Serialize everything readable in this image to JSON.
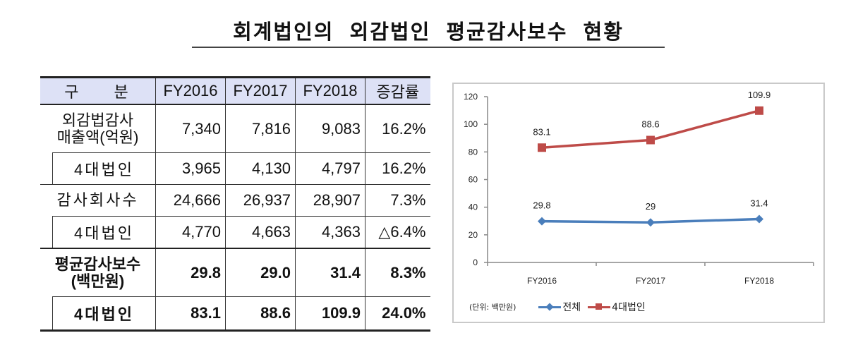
{
  "title": "회계법인의 외감법인 평균감사보수 현황",
  "table": {
    "headers": [
      "구 분",
      "FY2016",
      "FY2017",
      "FY2018",
      "증감률"
    ],
    "rows": [
      {
        "label": "외감법감사",
        "label2": "매출액(억원)",
        "values": [
          "7,340",
          "7,816",
          "9,083",
          "16.2%"
        ]
      },
      {
        "label": "4대법인",
        "sub": true,
        "values": [
          "3,965",
          "4,130",
          "4,797",
          "16.2%"
        ]
      },
      {
        "label": "감사회사수",
        "values": [
          "24,666",
          "26,937",
          "28,907",
          "7.3%"
        ]
      },
      {
        "label": "4대법인",
        "sub": true,
        "values": [
          "4,770",
          "4,663",
          "4,363",
          "△6.4%"
        ]
      },
      {
        "label": "평균감사보수",
        "label2": "(백만원)",
        "bold": true,
        "values": [
          "29.8",
          "29.0",
          "31.4",
          "8.3%"
        ]
      },
      {
        "label": "4대법인",
        "sub": true,
        "bold": true,
        "values": [
          "83.1",
          "88.6",
          "109.9",
          "24.0%"
        ]
      }
    ]
  },
  "chart": {
    "unit_note": "(단위: 백만원)",
    "legend": [
      "전체",
      "4대법인"
    ]
  },
  "chart_data": {
    "type": "line",
    "title": "",
    "categories": [
      "FY2016",
      "FY2017",
      "FY2018"
    ],
    "series": [
      {
        "name": "전체",
        "values": [
          29.8,
          29,
          31.4
        ],
        "color": "#4a7ebb",
        "marker": "diamond",
        "labels": [
          "29.8",
          "29",
          "31.4"
        ]
      },
      {
        "name": "4대법인",
        "values": [
          83.1,
          88.6,
          109.9
        ],
        "color": "#be4b48",
        "marker": "square",
        "labels": [
          "83.1",
          "88.6",
          "109.9"
        ]
      }
    ],
    "xlabel": "",
    "ylabel": "",
    "ylim": [
      0,
      120
    ],
    "yticks": [
      0,
      20,
      40,
      60,
      80,
      100,
      120
    ],
    "grid": false,
    "legend_position": "bottom",
    "unit": "(단위: 백만원)"
  }
}
